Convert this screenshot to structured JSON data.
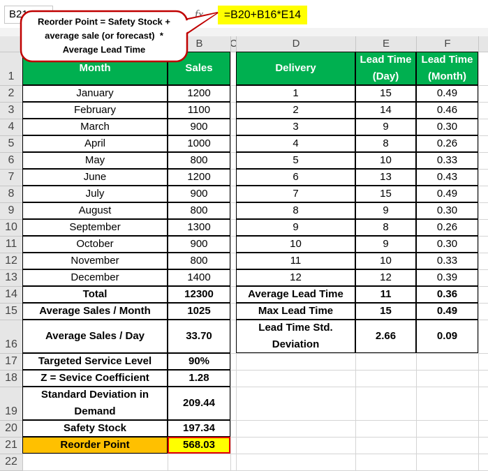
{
  "formula_bar": {
    "name_box": "B21",
    "fx": "fx",
    "formula": "=B20+B16*E14"
  },
  "callout": [
    "Reorder Point = Safety Stock +",
    "average sale (or forecast)  *",
    "Average Lead Time"
  ],
  "column_headers": [
    "B",
    "C",
    "D",
    "E",
    "F"
  ],
  "row_numbers": [
    "1",
    "2",
    "3",
    "4",
    "5",
    "6",
    "7",
    "8",
    "9",
    "10",
    "11",
    "12",
    "13",
    "14",
    "15",
    "16",
    "17",
    "18",
    "19",
    "20",
    "21",
    "22"
  ],
  "left_table": {
    "header": [
      "Month",
      "Sales"
    ],
    "rows": [
      [
        "January",
        "1200"
      ],
      [
        "February",
        "1100"
      ],
      [
        "March",
        "900"
      ],
      [
        "April",
        "1000"
      ],
      [
        "May",
        "800"
      ],
      [
        "June",
        "1200"
      ],
      [
        "July",
        "900"
      ],
      [
        "August",
        "800"
      ],
      [
        "September",
        "1300"
      ],
      [
        "October",
        "900"
      ],
      [
        "November",
        "800"
      ],
      [
        "December",
        "1400"
      ],
      [
        "Total",
        "12300"
      ],
      [
        "Average Sales / Month",
        "1025"
      ],
      [
        "Average Sales / Day",
        "33.70"
      ],
      [
        "Targeted Service Level",
        "90%"
      ],
      [
        "Z = Sevice Coefficient",
        "1.28"
      ],
      [
        "Standard Deviation in Demand",
        "209.44"
      ],
      [
        "Safety Stock",
        "197.34"
      ],
      [
        "Reorder Point",
        "568.03"
      ]
    ]
  },
  "right_table": {
    "header": [
      "Delivery",
      "Lead Time (Day)",
      "Lead Time (Month)"
    ],
    "rows": [
      [
        "1",
        "15",
        "0.49"
      ],
      [
        "2",
        "14",
        "0.46"
      ],
      [
        "3",
        "9",
        "0.30"
      ],
      [
        "4",
        "8",
        "0.26"
      ],
      [
        "5",
        "10",
        "0.33"
      ],
      [
        "6",
        "13",
        "0.43"
      ],
      [
        "7",
        "15",
        "0.49"
      ],
      [
        "8",
        "9",
        "0.30"
      ],
      [
        "9",
        "8",
        "0.26"
      ],
      [
        "10",
        "9",
        "0.30"
      ],
      [
        "11",
        "10",
        "0.33"
      ],
      [
        "12",
        "12",
        "0.39"
      ],
      [
        "Average Lead Time",
        "11",
        "0.36"
      ],
      [
        "Max Lead Time",
        "15",
        "0.49"
      ],
      [
        "Lead Time Std. Deviation",
        "2.66",
        "0.09"
      ]
    ]
  }
}
